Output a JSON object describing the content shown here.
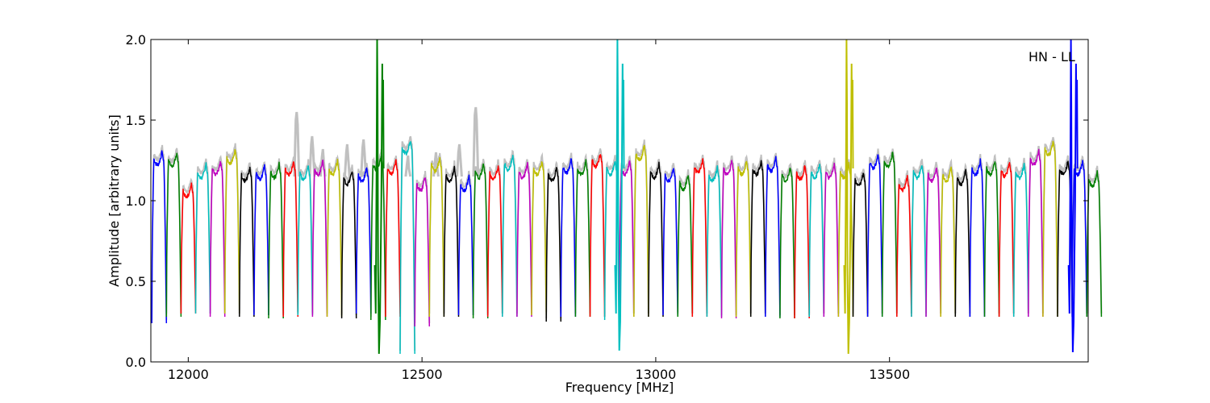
{
  "chart_data": {
    "type": "line",
    "title": "",
    "xlabel": "Frequency [MHz]",
    "ylabel": "Amplitude [arbitrary units]",
    "xlim": [
      11920,
      13925
    ],
    "ylim": [
      0.0,
      2.0
    ],
    "xticks": [
      12000,
      12500,
      13000,
      13500
    ],
    "xtick_labels": [
      "12000",
      "12500",
      "13000",
      "13500"
    ],
    "yticks": [
      0.0,
      0.5,
      1.0,
      1.5,
      2.0
    ],
    "ytick_labels": [
      "0.0",
      "0.5",
      "1.0",
      "1.5",
      "2.0"
    ],
    "grid": false,
    "legend": "none",
    "annotation": "HN - LL",
    "band_width_mhz": 31.25,
    "color_cycle": [
      "#0000ff",
      "#008000",
      "#ff0000",
      "#00bfbf",
      "#bf00bf",
      "#bfbf00",
      "#000000"
    ],
    "background_band_color": "#c0c0c0",
    "band_start_mhz": 11922,
    "band_plateau": [
      1.26,
      1.25,
      1.06,
      1.18,
      1.2,
      1.27,
      1.16,
      1.17,
      1.18,
      1.2,
      1.17,
      1.2,
      1.2,
      1.14,
      1.16,
      1.23,
      1.2,
      1.33,
      1.1,
      1.22,
      1.16,
      1.1,
      1.18,
      1.17,
      1.23,
      1.18,
      1.2,
      1.16,
      1.21,
      1.2,
      1.25,
      1.2,
      1.2,
      1.29,
      1.18,
      1.16,
      1.11,
      1.21,
      1.16,
      1.2,
      1.2,
      1.2,
      1.22,
      1.16,
      1.17,
      1.18,
      1.18,
      1.18,
      1.13,
      1.24,
      1.25,
      1.1,
      1.18,
      1.16,
      1.16,
      1.14,
      1.2,
      1.2,
      1.19,
      1.18,
      1.26,
      1.32,
      1.2,
      1.2,
      1.13
    ],
    "band_minimum": [
      0.24,
      0.28,
      0.3,
      0.3,
      0.28,
      0.3,
      0.28,
      0.29,
      0.27,
      0.28,
      0.29,
      0.28,
      0.28,
      0.27,
      0.3,
      0.26,
      0.28,
      0.05,
      0.22,
      0.28,
      0.28,
      0.29,
      0.27,
      0.28,
      0.28,
      0.28,
      0.29,
      0.25,
      0.28,
      0.28,
      0.28,
      0.26,
      0.28,
      0.28,
      0.28,
      0.29,
      0.28,
      0.28,
      0.28,
      0.27,
      0.28,
      0.28,
      0.28,
      0.27,
      0.27,
      0.28,
      0.28,
      0.28,
      0.28,
      0.28,
      0.28,
      0.28,
      0.28,
      0.28,
      0.28,
      0.28,
      0.28,
      0.28,
      0.28,
      0.28,
      0.28,
      0.28,
      0.28,
      0.28,
      0.28
    ],
    "background_peaks": [
      {
        "x": 12232,
        "y": 1.55
      },
      {
        "x": 12265,
        "y": 1.4
      },
      {
        "x": 12288,
        "y": 1.32
      },
      {
        "x": 12340,
        "y": 1.35
      },
      {
        "x": 12375,
        "y": 1.38
      },
      {
        "x": 12470,
        "y": 1.28
      },
      {
        "x": 12530,
        "y": 1.3
      },
      {
        "x": 12580,
        "y": 1.35
      },
      {
        "x": 12615,
        "y": 1.58
      }
    ],
    "spikes": [
      {
        "x": 12408,
        "min": 0.05,
        "max": 2.0,
        "color": "#008000"
      },
      {
        "x": 12922,
        "min": 0.07,
        "max": 2.0,
        "color": "#00bfbf"
      },
      {
        "x": 13412,
        "min": 0.05,
        "max": 2.0,
        "color": "#bfbf00"
      },
      {
        "x": 13892,
        "min": 0.06,
        "max": 2.0,
        "color": "#0000ff"
      }
    ]
  }
}
